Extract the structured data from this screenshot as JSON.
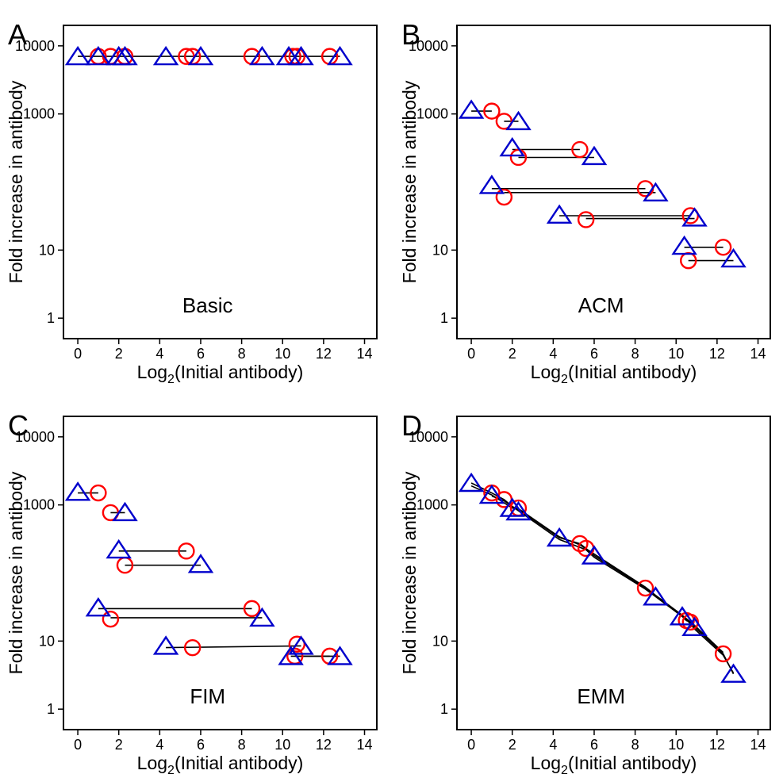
{
  "colors": {
    "circle": "#ff0000",
    "triangle": "#0000cc",
    "line": "#000000",
    "frame": "#000000"
  },
  "chart_data": [
    {
      "type": "scatter",
      "panel": "A",
      "model_label": "Basic",
      "xlabel_prefix": "Log",
      "xlabel_sub": "2",
      "xlabel_suffix": "(Initial antibody)",
      "ylabel": "Fold increase in antibody",
      "xlim": [
        -0.7,
        14.6
      ],
      "ylim": [
        0.5,
        20000
      ],
      "yscale": "log",
      "xticks": [
        0,
        2,
        4,
        6,
        8,
        10,
        12,
        14
      ],
      "yticks": [
        1,
        10,
        1000,
        10000
      ],
      "yticklabels": [
        "1",
        "10",
        "1000",
        "10000"
      ],
      "grid": false,
      "series": [
        {
          "marker": "circle",
          "x": [
            1.0,
            1.6,
            2.3,
            5.3,
            5.6,
            8.5,
            10.5,
            10.7,
            12.3
          ],
          "y": [
            7000,
            7000,
            7000,
            7000,
            7000,
            7000,
            7000,
            7000,
            7000
          ]
        },
        {
          "marker": "triangle",
          "x": [
            0.0,
            1.0,
            2.0,
            2.3,
            4.3,
            6.0,
            9.0,
            10.3,
            10.9,
            12.8
          ],
          "y": [
            7000,
            7000,
            7000,
            7000,
            7000,
            7000,
            7000,
            7000,
            7000,
            7000
          ]
        }
      ],
      "segments": [
        {
          "x": [
            0.0,
            12.8
          ],
          "y": [
            7000,
            7000
          ]
        }
      ]
    },
    {
      "type": "scatter",
      "panel": "B",
      "model_label": "ACM",
      "xlabel_prefix": "Log",
      "xlabel_sub": "2",
      "xlabel_suffix": "(Initial antibody)",
      "ylabel": "Fold increase in antibody",
      "xlim": [
        -0.7,
        14.6
      ],
      "ylim": [
        0.5,
        20000
      ],
      "yscale": "log",
      "xticks": [
        0,
        2,
        4,
        6,
        8,
        10,
        12,
        14
      ],
      "yticks": [
        1,
        10,
        1000,
        10000
      ],
      "yticklabels": [
        "1",
        "10",
        "1000",
        "10000"
      ],
      "grid": false,
      "series": [
        {
          "marker": "circle",
          "x": [
            1.0,
            1.6,
            2.3,
            5.3,
            1.6,
            8.5,
            5.6,
            10.7,
            12.3,
            10.6
          ],
          "y": [
            1100,
            780,
            230,
            300,
            60,
            80,
            28,
            32,
            11,
            7
          ]
        },
        {
          "marker": "triangle",
          "x": [
            0.0,
            2.3,
            2.0,
            6.0,
            1.0,
            9.0,
            4.3,
            10.9,
            10.4,
            12.8
          ],
          "y": [
            1150,
            780,
            320,
            240,
            90,
            70,
            33,
            30,
            11.5,
            7.5
          ]
        }
      ],
      "segments": [
        {
          "x": [
            0.0,
            1.0
          ],
          "y": [
            1100,
            1100
          ]
        },
        {
          "x": [
            1.6,
            2.3
          ],
          "y": [
            780,
            780
          ]
        },
        {
          "x": [
            2.0,
            5.3
          ],
          "y": [
            300,
            300
          ]
        },
        {
          "x": [
            2.3,
            6.0
          ],
          "y": [
            230,
            230
          ]
        },
        {
          "x": [
            1.0,
            8.5
          ],
          "y": [
            80,
            80
          ]
        },
        {
          "x": [
            1.6,
            9.0
          ],
          "y": [
            70,
            70
          ]
        },
        {
          "x": [
            4.3,
            10.7
          ],
          "y": [
            32,
            32
          ]
        },
        {
          "x": [
            5.6,
            10.9
          ],
          "y": [
            29,
            29
          ]
        },
        {
          "x": [
            10.4,
            12.3
          ],
          "y": [
            11,
            11
          ]
        },
        {
          "x": [
            10.6,
            12.8
          ],
          "y": [
            7,
            7
          ]
        }
      ]
    },
    {
      "type": "scatter",
      "panel": "C",
      "model_label": "FIM",
      "xlabel_prefix": "Log",
      "xlabel_sub": "2",
      "xlabel_suffix": "(Initial antibody)",
      "ylabel": "Fold increase in antibody",
      "xlim": [
        -0.7,
        14.6
      ],
      "ylim": [
        0.5,
        20000
      ],
      "yscale": "log",
      "xticks": [
        0,
        2,
        4,
        6,
        8,
        10,
        12,
        14
      ],
      "yticks": [
        1,
        10,
        1000,
        10000
      ],
      "yticklabels": [
        "1",
        "10",
        "1000",
        "10000"
      ],
      "grid": false,
      "series": [
        {
          "marker": "circle",
          "x": [
            1.0,
            1.6,
            5.3,
            2.3,
            8.5,
            1.6,
            5.6,
            10.7,
            10.6,
            12.3
          ],
          "y": [
            1500,
            770,
            210,
            130,
            30,
            21,
            8,
            9,
            6,
            6
          ]
        },
        {
          "marker": "triangle",
          "x": [
            0.0,
            2.3,
            2.0,
            6.0,
            1.0,
            9.0,
            4.3,
            10.9,
            10.4,
            12.8
          ],
          "y": [
            1550,
            780,
            220,
            135,
            31,
            22,
            8.5,
            8.5,
            6,
            6
          ]
        }
      ],
      "segments": [
        {
          "x": [
            0.0,
            1.0
          ],
          "y": [
            1500,
            1500
          ]
        },
        {
          "x": [
            1.6,
            2.3
          ],
          "y": [
            770,
            770
          ]
        },
        {
          "x": [
            2.0,
            5.3
          ],
          "y": [
            210,
            210
          ]
        },
        {
          "x": [
            2.3,
            6.0
          ],
          "y": [
            130,
            130
          ]
        },
        {
          "x": [
            1.0,
            8.5
          ],
          "y": [
            30,
            30
          ]
        },
        {
          "x": [
            1.6,
            9.0
          ],
          "y": [
            22,
            22
          ]
        },
        {
          "x": [
            4.3,
            10.9
          ],
          "y": [
            8,
            8.5
          ]
        },
        {
          "x": [
            10.4,
            12.3
          ],
          "y": [
            6,
            6
          ]
        },
        {
          "x": [
            10.6,
            12.8
          ],
          "y": [
            6,
            6
          ]
        }
      ]
    },
    {
      "type": "scatter",
      "panel": "D",
      "model_label": "EMM",
      "xlabel_prefix": "Log",
      "xlabel_sub": "2",
      "xlabel_suffix": "(Initial antibody)",
      "ylabel": "Fold increase in antibody",
      "xlim": [
        -0.7,
        14.6
      ],
      "ylim": [
        0.5,
        20000
      ],
      "yscale": "log",
      "xticks": [
        0,
        2,
        4,
        6,
        8,
        10,
        12,
        14
      ],
      "yticks": [
        1,
        10,
        1000,
        10000
      ],
      "yticklabels": [
        "1",
        "10",
        "1000",
        "10000"
      ],
      "grid": false,
      "series": [
        {
          "marker": "circle",
          "x": [
            1.0,
            1.6,
            2.3,
            5.3,
            5.6,
            8.5,
            10.5,
            10.7,
            12.3
          ],
          "y": [
            1500,
            1200,
            900,
            270,
            230,
            60,
            20,
            19,
            6.5
          ]
        },
        {
          "marker": "triangle",
          "x": [
            0.0,
            1.0,
            2.0,
            2.3,
            4.3,
            6.0,
            9.0,
            10.3,
            10.9,
            12.8
          ],
          "y": [
            2100,
            1400,
            900,
            800,
            330,
            180,
            45,
            23,
            16,
            3.3
          ]
        }
      ],
      "segments": [
        {
          "x": [
            0.0,
            1.0,
            1.6,
            2.0,
            2.3,
            4.3,
            5.3,
            5.6,
            6.0,
            8.5,
            9.0,
            10.3,
            10.5,
            10.7,
            10.9,
            12.3,
            12.8
          ],
          "y": [
            2100,
            1500,
            1200,
            950,
            850,
            330,
            270,
            230,
            180,
            60,
            45,
            23,
            20,
            19,
            16,
            6.5,
            3.3
          ]
        },
        {
          "x": [
            0.0,
            1.0,
            2.0,
            2.3,
            4.3,
            5.3,
            6.0,
            8.5,
            9.0,
            10.3,
            10.7,
            10.9,
            12.3
          ],
          "y": [
            1900,
            1400,
            900,
            880,
            340,
            260,
            190,
            62,
            47,
            24,
            19,
            17,
            6.8
          ]
        },
        {
          "x": [
            1.0,
            1.6,
            2.3,
            4.3,
            5.6,
            6.0,
            8.5,
            10.5,
            10.9,
            12.3,
            12.8
          ],
          "y": [
            1350,
            1150,
            820,
            310,
            220,
            170,
            58,
            21,
            15,
            6.2,
            3.4
          ]
        }
      ]
    }
  ]
}
